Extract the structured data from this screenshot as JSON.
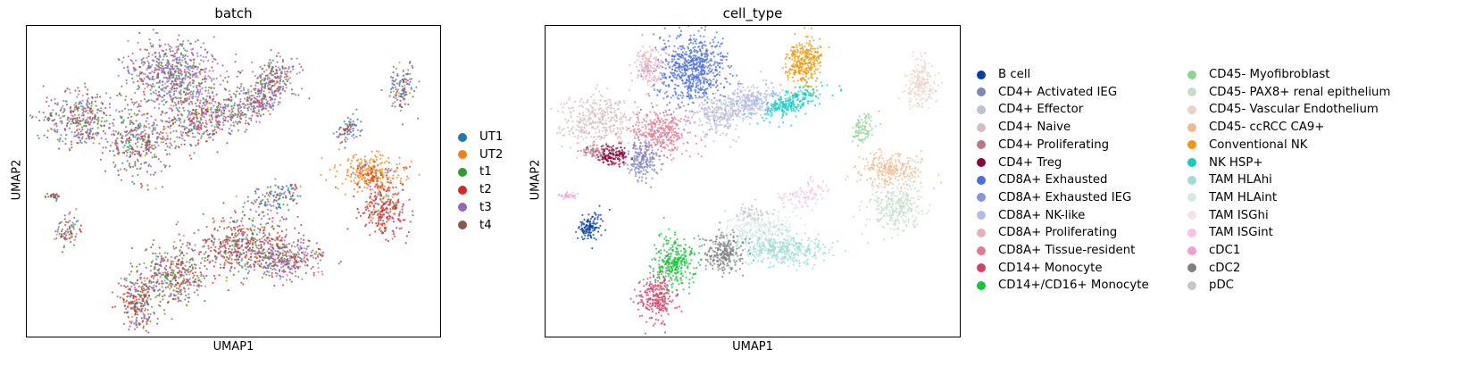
{
  "chart_data": [
    {
      "type": "scatter",
      "title": "batch",
      "xlabel": "UMAP1",
      "ylabel": "UMAP2",
      "grid": false,
      "legend_position": "right",
      "legend": [
        {
          "label": "UT1",
          "color": "#1f77b4"
        },
        {
          "label": "UT2",
          "color": "#ff7f0e"
        },
        {
          "label": "t1",
          "color": "#2ca02c"
        },
        {
          "label": "t2",
          "color": "#d62728"
        },
        {
          "label": "t3",
          "color": "#9467bd"
        },
        {
          "label": "t4",
          "color": "#8c564b"
        }
      ]
    },
    {
      "type": "scatter",
      "title": "cell_type",
      "xlabel": "UMAP1",
      "ylabel": "UMAP2",
      "grid": false,
      "legend_position": "right",
      "legend": [
        {
          "label": "B cell",
          "color": "#023fa5"
        },
        {
          "label": "CD4+ Activated IEG",
          "color": "#7d87b9"
        },
        {
          "label": "CD4+ Effector",
          "color": "#bec1d4"
        },
        {
          "label": "CD4+ Naive",
          "color": "#d6bcc0"
        },
        {
          "label": "CD4+ Proliferating",
          "color": "#bb7784"
        },
        {
          "label": "CD4+ Treg",
          "color": "#8e063b"
        },
        {
          "label": "CD8A+ Exhausted",
          "color": "#4a6fe3"
        },
        {
          "label": "CD8A+ Exhausted IEG",
          "color": "#8595e1"
        },
        {
          "label": "CD8A+ NK-like",
          "color": "#b5bbe3"
        },
        {
          "label": "CD8A+ Proliferating",
          "color": "#e6afb9"
        },
        {
          "label": "CD8A+ Tissue-resident",
          "color": "#e07b91"
        },
        {
          "label": "CD14+ Monocyte",
          "color": "#d33f6a"
        },
        {
          "label": "CD14+/CD16+ Monocyte",
          "color": "#11c638"
        },
        {
          "label": "CD45- Myofibroblast",
          "color": "#8dd593"
        },
        {
          "label": "CD45- PAX8+ renal epithelium",
          "color": "#c6dec7"
        },
        {
          "label": "CD45- Vascular Endothelium",
          "color": "#ead3c6"
        },
        {
          "label": "CD45- ccRCC CA9+",
          "color": "#f0b98d"
        },
        {
          "label": "Conventional NK",
          "color": "#ef9708"
        },
        {
          "label": "NK HSP+",
          "color": "#0fcfc0"
        },
        {
          "label": "TAM HLAhi",
          "color": "#9cded6"
        },
        {
          "label": "TAM HLAint",
          "color": "#d5eae7"
        },
        {
          "label": "TAM ISGhi",
          "color": "#f3e1eb"
        },
        {
          "label": "TAM ISGint",
          "color": "#f6c4e1"
        },
        {
          "label": "cDC1",
          "color": "#f79cd4"
        },
        {
          "label": "cDC2",
          "color": "#7f7f7f"
        },
        {
          "label": "pDC",
          "color": "#c7c7c7"
        }
      ]
    }
  ]
}
